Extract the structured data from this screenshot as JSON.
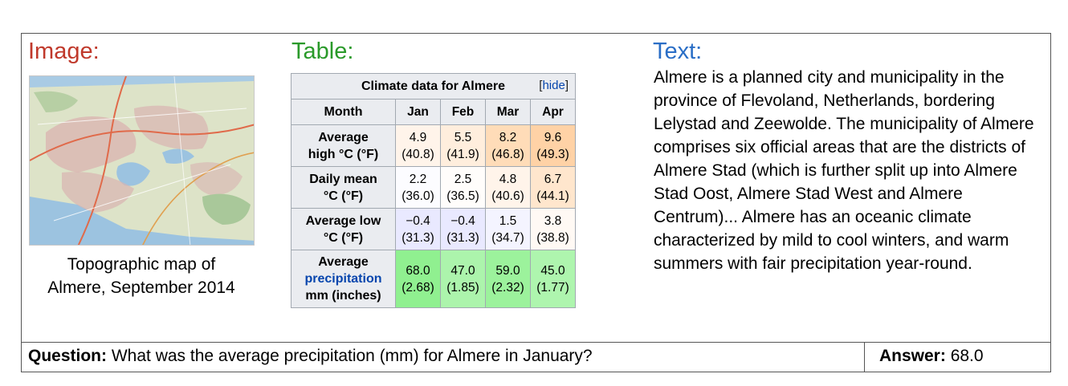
{
  "sections": {
    "image_title": "Image:",
    "table_title": "Table:",
    "text_title": "Text:"
  },
  "image": {
    "caption_line1": "Topographic map of",
    "caption_line2": "Almere, September 2014"
  },
  "table": {
    "caption": "Climate data for Almere",
    "hide_open": "[",
    "hide_link": "hide",
    "hide_close": "]",
    "header": [
      "Month",
      "Jan",
      "Feb",
      "Mar",
      "Apr"
    ],
    "rows": [
      {
        "label_line1": "Average",
        "label_line2": "high °C (°F)",
        "cells": [
          {
            "c": "4.9",
            "f": "(40.8)",
            "color": "#fff4ea"
          },
          {
            "c": "5.5",
            "f": "(41.9)",
            "color": "#ffeedd"
          },
          {
            "c": "8.2",
            "f": "(46.8)",
            "color": "#ffdcb8"
          },
          {
            "c": "9.6",
            "f": "(49.3)",
            "color": "#ffd2a6"
          }
        ]
      },
      {
        "label_line1": "Daily mean",
        "label_line2": "°C (°F)",
        "cells": [
          {
            "c": "2.2",
            "f": "(36.0)",
            "color": "#fcfcff"
          },
          {
            "c": "2.5",
            "f": "(36.5)",
            "color": "#fffdfb"
          },
          {
            "c": "4.8",
            "f": "(40.6)",
            "color": "#fff4ea"
          },
          {
            "c": "6.7",
            "f": "(44.1)",
            "color": "#ffe6cd"
          }
        ]
      },
      {
        "label_line1": "Average low",
        "label_line2": "°C (°F)",
        "cells": [
          {
            "c": "−0.4",
            "f": "(31.3)",
            "color": "#e9e9ff"
          },
          {
            "c": "−0.4",
            "f": "(31.3)",
            "color": "#e9e9ff"
          },
          {
            "c": "1.5",
            "f": "(34.7)",
            "color": "#f4f4ff"
          },
          {
            "c": "3.8",
            "f": "(38.8)",
            "color": "#fff9f4"
          }
        ]
      },
      {
        "label_line1": "Average",
        "label_line2": "precipitation",
        "label_line3": "mm (inches)",
        "cells": [
          {
            "c": "68.0",
            "f": "(2.68)",
            "color": "#90f090"
          },
          {
            "c": "47.0",
            "f": "(1.85)",
            "color": "#acf4ac"
          },
          {
            "c": "59.0",
            "f": "(2.32)",
            "color": "#9cf29c"
          },
          {
            "c": "45.0",
            "f": "(1.77)",
            "color": "#aef5ae"
          }
        ]
      }
    ]
  },
  "text": {
    "paragraph": "Almere is a planned city and municipality in the province of Flevoland, Netherlands, bordering Lelystad and Zeewolde. The municipality of Almere comprises six official areas that are the districts of Almere Stad (which is further split up into Almere Stad Oost, Almere Stad West and Almere Centrum)... Almere has an oceanic climate characterized by mild to cool winters, and warm summers with fair precipitation year-round."
  },
  "qa": {
    "question_label": "Question:",
    "question": "What was the average precipitation (mm) for Almere in January?",
    "answer_label": "Answer:",
    "answer": "68.0"
  },
  "colors": {
    "image_title": "#c0392b",
    "table_title": "#2a9a2a",
    "text_title": "#2a6ec6"
  }
}
